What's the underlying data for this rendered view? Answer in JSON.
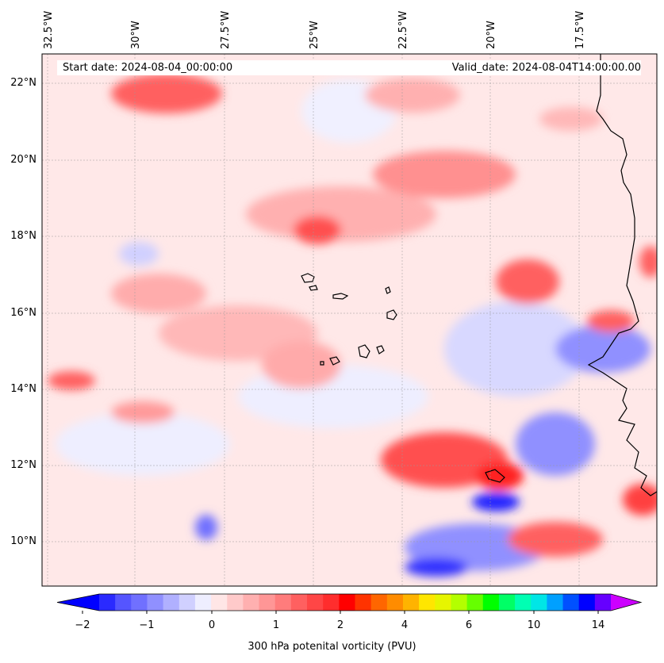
{
  "map": {
    "start_date": "Start date: 2024-08-04_00:00:00",
    "valid_date": "Valid_date: 2024-08-04T14:00:00.00",
    "lon_labels": [
      "32.5°W",
      "30°W",
      "27.5°W",
      "25°W",
      "22.5°W",
      "20°W",
      "17.5°W"
    ],
    "lat_labels": [
      "22°N",
      "20°N",
      "18°N",
      "16°N",
      "14°N",
      "12°N",
      "10°N"
    ]
  },
  "colorbar": {
    "title": "300 hPa potenital vorticity (PVU)",
    "tick_labels": [
      "−2",
      "−1",
      "0",
      "1",
      "2",
      "4",
      "6",
      "10",
      "14"
    ],
    "colors": [
      "#0000ff",
      "#2a2aff",
      "#5555ff",
      "#7070ff",
      "#9090ff",
      "#b0b0ff",
      "#d0d0ff",
      "#eeeeff",
      "#ffe6e6",
      "#ffcaca",
      "#ffb0b0",
      "#ff9696",
      "#ff7c7c",
      "#ff6060",
      "#ff4646",
      "#ff2d2d",
      "#ff0000",
      "#ff3300",
      "#ff6600",
      "#ff8c00",
      "#ffb300",
      "#ffe600",
      "#e6f500",
      "#b3ff00",
      "#66ff00",
      "#00ff00",
      "#00ff66",
      "#00ffb3",
      "#00e6e6",
      "#00a0ff",
      "#0050ff",
      "#0000ff",
      "#6600ff",
      "#cc00ff"
    ],
    "min_color": "#0000ff",
    "max_color": "#cc00ff"
  }
}
